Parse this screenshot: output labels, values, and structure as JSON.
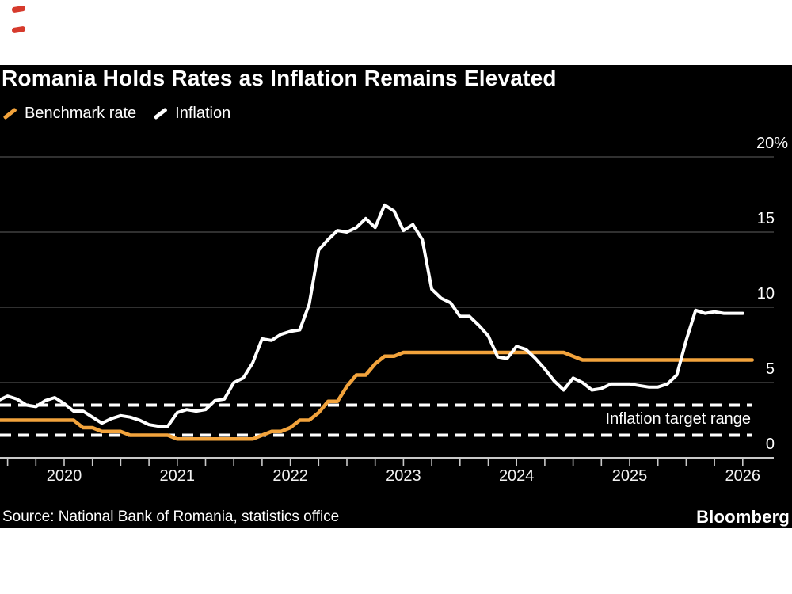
{
  "page": {
    "background": "#ffffff",
    "panel_background": "#000000",
    "marks_color": "#d63a2c"
  },
  "header": {
    "title": "Romania Holds Rates as Inflation Remains Elevated",
    "legend": [
      {
        "label": "Benchmark rate",
        "color": "#F2A33C"
      },
      {
        "label": "Inflation",
        "color": "#FFFFFF"
      }
    ]
  },
  "footer": {
    "source": "Source: National Bank of Romania, statistics office",
    "brand": "Bloomberg"
  },
  "chart_data": {
    "type": "line",
    "title": "Romania Holds Rates as Inflation Remains Elevated",
    "frequency": "monthly",
    "ylim": [
      0,
      21
    ],
    "grid": true,
    "legend_position": "top-left",
    "annotation": "Inflation target range",
    "target_range": {
      "low": 1.5,
      "high": 3.5,
      "line_style": "dashed",
      "line_color": "#FFFFFF"
    },
    "yticks": [
      {
        "value": 0,
        "label": "0"
      },
      {
        "value": 5,
        "label": "5"
      },
      {
        "value": 10,
        "label": "10"
      },
      {
        "value": 15,
        "label": "15"
      },
      {
        "value": 20,
        "label": "20%"
      }
    ],
    "xticks": [
      "2020",
      "2021",
      "2022",
      "2023",
      "2024",
      "2025",
      "2026"
    ],
    "series": [
      {
        "name": "Benchmark rate",
        "color": "#F2A33C",
        "start": "2019-06",
        "values": [
          2.5,
          2.5,
          2.5,
          2.5,
          2.5,
          2.5,
          2.5,
          2.5,
          2.5,
          2.0,
          2.0,
          1.75,
          1.75,
          1.75,
          1.5,
          1.5,
          1.5,
          1.5,
          1.5,
          1.25,
          1.25,
          1.25,
          1.25,
          1.25,
          1.25,
          1.25,
          1.25,
          1.25,
          1.5,
          1.75,
          1.75,
          2.0,
          2.5,
          2.5,
          3.0,
          3.75,
          3.75,
          4.75,
          5.5,
          5.5,
          6.25,
          6.75,
          6.75,
          7.0,
          7.0,
          7.0,
          7.0,
          7.0,
          7.0,
          7.0,
          7.0,
          7.0,
          7.0,
          7.0,
          7.0,
          7.0,
          7.0,
          7.0,
          7.0,
          7.0,
          7.0,
          6.75,
          6.5,
          6.5,
          6.5,
          6.5,
          6.5,
          6.5,
          6.5,
          6.5,
          6.5,
          6.5,
          6.5,
          6.5,
          6.5,
          6.5,
          6.5,
          6.5,
          6.5,
          6.5,
          6.5
        ]
      },
      {
        "name": "Inflation",
        "color": "#FFFFFF",
        "start": "2019-06",
        "values": [
          3.8,
          4.1,
          3.9,
          3.5,
          3.4,
          3.8,
          4.0,
          3.6,
          3.1,
          3.1,
          2.7,
          2.3,
          2.6,
          2.8,
          2.7,
          2.5,
          2.2,
          2.1,
          2.1,
          3.0,
          3.2,
          3.1,
          3.2,
          3.8,
          3.9,
          5.0,
          5.3,
          6.3,
          7.9,
          7.8,
          8.2,
          8.4,
          8.5,
          10.2,
          13.8,
          14.5,
          15.1,
          15.0,
          15.3,
          15.9,
          15.3,
          16.8,
          16.4,
          15.1,
          15.5,
          14.5,
          11.2,
          10.6,
          10.3,
          9.4,
          9.4,
          8.8,
          8.1,
          6.7,
          6.6,
          7.4,
          7.2,
          6.6,
          5.9,
          5.1,
          4.5,
          5.3,
          5.0,
          4.5,
          4.6,
          4.9,
          4.9,
          4.9,
          4.8,
          4.7,
          4.7,
          4.9,
          5.5,
          7.8,
          9.8,
          9.6,
          9.7,
          9.6,
          9.6,
          9.6
        ]
      }
    ]
  }
}
